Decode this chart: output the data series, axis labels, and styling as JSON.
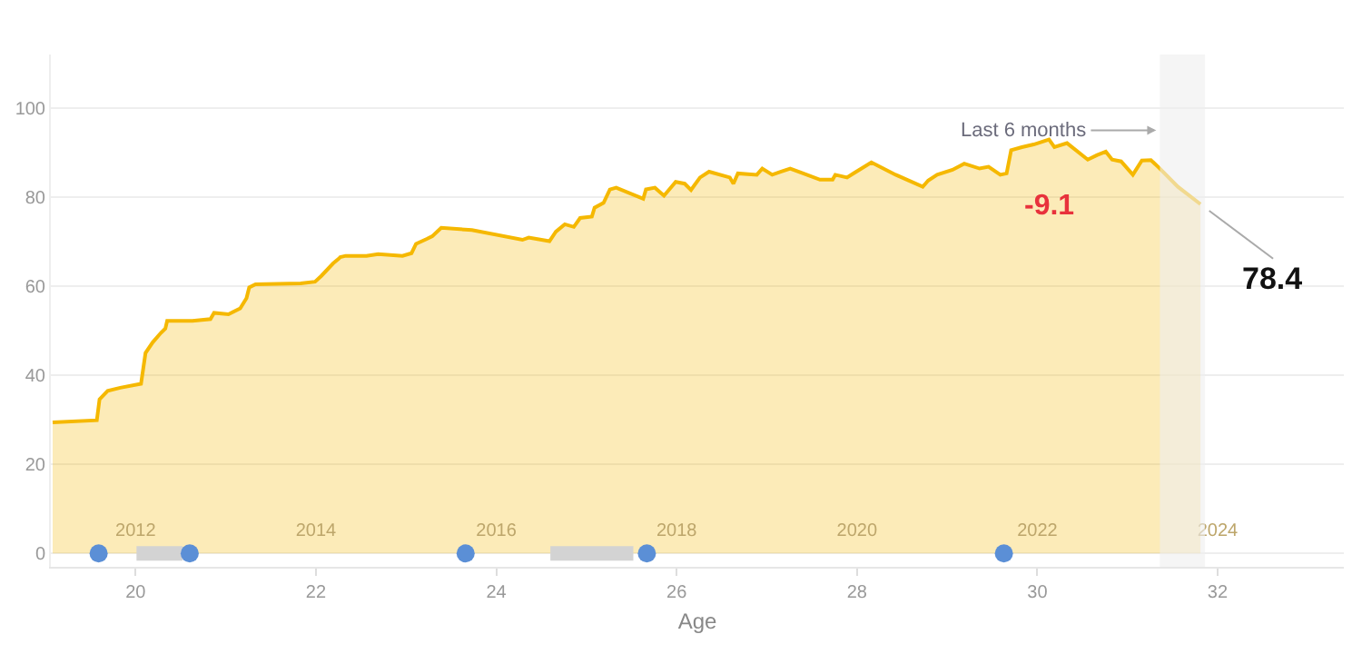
{
  "chart_data": {
    "type": "area",
    "xlabel": "Age",
    "xlim": [
      19.06,
      33.4
    ],
    "xticks": [
      20,
      22,
      24,
      26,
      28,
      30,
      32
    ],
    "x2lim": [
      2011.06,
      2025.4
    ],
    "x2ticks": [
      2012,
      2014,
      2016,
      2018,
      2020,
      2022,
      2024
    ],
    "ylim": [
      -3,
      112
    ],
    "yticks": [
      0,
      20,
      40,
      60,
      80,
      100
    ],
    "grid": "y",
    "series": [
      {
        "color": "#f5b800",
        "x": [
          19.08,
          19.57,
          19.6,
          19.69,
          19.83,
          20.06,
          20.11,
          20.19,
          20.28,
          20.33,
          20.35,
          20.63,
          20.83,
          20.87,
          21.03,
          21.16,
          21.23,
          21.26,
          21.33,
          21.83,
          21.99,
          22.06,
          22.19,
          22.25,
          22.27,
          22.33,
          22.56,
          22.69,
          22.96,
          23.06,
          23.11,
          23.23,
          23.29,
          23.39,
          23.73,
          24.29,
          24.36,
          24.59,
          24.66,
          24.76,
          24.86,
          24.93,
          25.06,
          25.09,
          25.19,
          25.26,
          25.33,
          25.63,
          25.66,
          25.76,
          25.86,
          25.99,
          26.09,
          26.16,
          26.26,
          26.36,
          26.59,
          26.63,
          26.68,
          26.89,
          26.95,
          27.06,
          27.16,
          27.26,
          27.39,
          27.59,
          27.73,
          27.76,
          27.89,
          27.96,
          28.16,
          28.43,
          28.73,
          28.79,
          28.89,
          29.06,
          29.19,
          29.36,
          29.46,
          29.59,
          29.66,
          29.71,
          29.83,
          29.96,
          30.13,
          30.19,
          30.33,
          30.56,
          30.66,
          30.76,
          30.83,
          30.93,
          31.06,
          31.16,
          31.26,
          31.36,
          31.56,
          31.81
        ],
        "values": [
          29.4,
          29.9,
          34.6,
          36.5,
          37.2,
          38.1,
          45.0,
          47.4,
          49.5,
          50.5,
          52.2,
          52.2,
          52.6,
          54,
          53.7,
          55,
          57.3,
          59.7,
          60.4,
          60.6,
          61,
          62.3,
          65.1,
          66.1,
          66.5,
          66.8,
          66.8,
          67.2,
          66.8,
          67.4,
          69.5,
          70.6,
          71.2,
          73.1,
          72.6,
          70.4,
          70.9,
          70.1,
          72.2,
          73.9,
          73.3,
          75.3,
          75.6,
          77.6,
          78.7,
          81.7,
          82.1,
          79.6,
          81.7,
          82.1,
          80.3,
          83.4,
          83.0,
          81.6,
          84.4,
          85.7,
          84.4,
          83,
          85.3,
          85,
          86.4,
          85,
          85.7,
          86.4,
          85.4,
          83.9,
          83.9,
          85,
          84.4,
          85.3,
          87.8,
          85,
          82.3,
          83.7,
          85,
          86.1,
          87.5,
          86.4,
          86.8,
          85,
          85.3,
          90.5,
          91.2,
          91.8,
          92.9,
          91.2,
          92.1,
          88.4,
          89.4,
          90.2,
          88.4,
          88,
          85,
          88.2,
          88.3,
          86.4,
          82.3,
          78.4
        ]
      },
      {
        "type": "line",
        "color": "#d3d3d3",
        "x": [
          20.01,
          20.52,
          22.5,
          24.6,
          25.52
        ],
        "values": [
          0,
          0,
          null,
          0,
          0
        ]
      },
      {
        "type": "scatter",
        "color": "#5b8fd6",
        "marker": "circle",
        "x": [
          19.59,
          20.6,
          23.66,
          25.67,
          29.63
        ],
        "values": [
          0,
          0,
          0,
          0,
          0
        ]
      }
    ],
    "bands": [
      {
        "axis": "x",
        "from": 31.36,
        "to": 31.86,
        "label": "Last 6 months",
        "color": "#eeeeee"
      }
    ],
    "annotations": [
      "-9.1",
      {
        "text": "78.4",
        "x": 31.81,
        "y": 78.4
      }
    ]
  }
}
